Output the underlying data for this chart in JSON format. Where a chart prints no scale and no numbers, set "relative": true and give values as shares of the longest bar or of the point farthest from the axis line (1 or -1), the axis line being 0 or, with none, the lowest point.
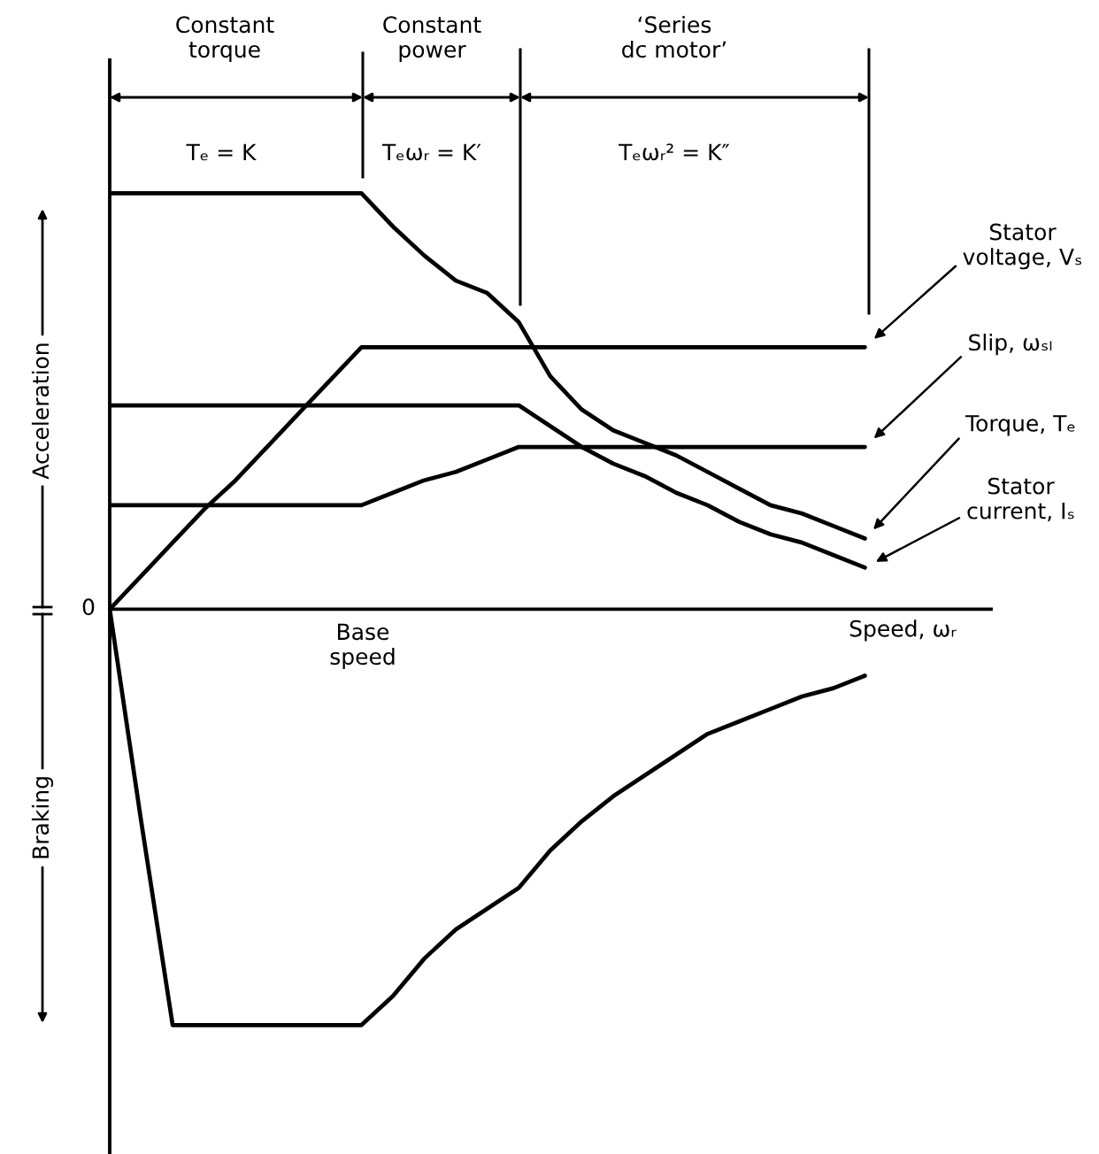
{
  "chart_data": {
    "type": "line",
    "relative": true,
    "xlabel": "Speed, ωᵣ",
    "line_style": "solid",
    "categories": [
      null,
      null,
      null,
      null,
      null,
      null,
      null,
      null,
      null,
      null,
      null,
      null,
      null,
      null,
      null,
      null,
      null,
      null,
      null,
      null,
      null,
      null,
      null,
      null,
      null
    ],
    "series": [
      {
        "name": "Stator\nvoltage, Vₛ",
        "color": "#000000",
        "values": [
          0,
          0.08,
          0.16,
          0.24,
          0.31,
          0.39,
          0.47,
          0.55,
          0.63,
          0.63,
          0.63,
          0.63,
          0.63,
          0.63,
          0.63,
          0.63,
          0.63,
          0.63,
          0.63,
          0.63,
          0.63,
          0.63,
          0.63,
          0.63,
          0.63
        ]
      },
      {
        "name": "Slip, ωₛₗ",
        "color": "#000000",
        "values": [
          0.25,
          0.25,
          0.25,
          0.25,
          0.25,
          0.25,
          0.25,
          0.25,
          0.25,
          0.28,
          0.31,
          0.33,
          0.36,
          0.39,
          0.39,
          0.39,
          0.39,
          0.39,
          0.39,
          0.39,
          0.39,
          0.39,
          0.39,
          0.39,
          0.39
        ]
      },
      {
        "name": "Torque, Tₑ",
        "color": "#000000",
        "values": [
          1.0,
          1.0,
          1.0,
          1.0,
          1.0,
          1.0,
          1.0,
          1.0,
          1.0,
          0.92,
          0.85,
          0.79,
          0.76,
          0.69,
          0.56,
          0.48,
          0.43,
          0.4,
          0.37,
          0.33,
          0.29,
          0.25,
          0.23,
          0.2,
          0.17
        ]
      },
      {
        "name": "Stator\ncurrent, Iₛ",
        "color": "#000000",
        "values": [
          0.49,
          0.49,
          0.49,
          0.49,
          0.49,
          0.49,
          0.49,
          0.49,
          0.49,
          0.49,
          0.49,
          0.49,
          0.49,
          0.49,
          0.44,
          0.39,
          0.35,
          0.32,
          0.28,
          0.25,
          0.21,
          0.18,
          0.16,
          0.13,
          0.1
        ]
      },
      {
        "color": "#000000",
        "values": [
          0,
          -0.51,
          -1.0,
          -1.0,
          -1.0,
          -1.0,
          -1.0,
          -1.0,
          -1.0,
          -0.93,
          -0.84,
          -0.77,
          -0.72,
          -0.67,
          -0.58,
          -0.51,
          -0.45,
          -0.4,
          -0.35,
          -0.3,
          -0.27,
          -0.24,
          -0.21,
          -0.19,
          -0.16
        ]
      }
    ],
    "annotations": [
      "0",
      "Constant\ntorque",
      "Constant\npower",
      "‘Series\ndc motor’",
      "Tₑ = K",
      "Tₑωᵣ = K′",
      "Tₑωᵣ² = K″",
      "Base\nspeed",
      "Acceleration",
      "Braking"
    ]
  }
}
